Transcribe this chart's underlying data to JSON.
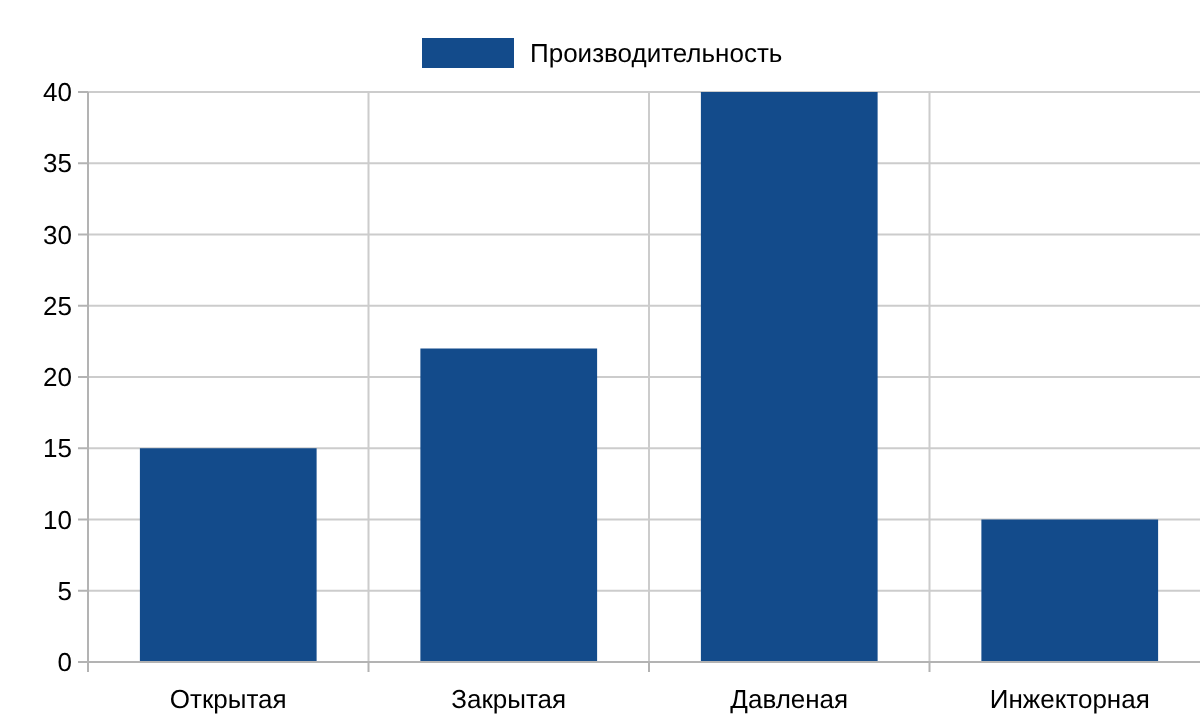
{
  "chart_data": {
    "type": "bar",
    "categories": [
      "Открытая",
      "Закрытая",
      "Давленая",
      "Инжекторная"
    ],
    "series": [
      {
        "name": "Производительность",
        "color": "#134b8b",
        "values": [
          15,
          22,
          40,
          10
        ]
      }
    ],
    "ylim": [
      0,
      40
    ],
    "yticks": [
      0,
      5,
      10,
      15,
      20,
      25,
      30,
      35,
      40
    ],
    "grid": true,
    "legend": "top"
  }
}
